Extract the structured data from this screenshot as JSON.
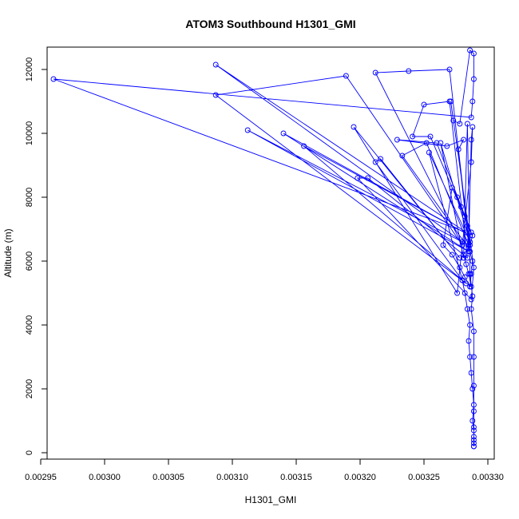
{
  "chart_data": {
    "type": "line",
    "title": "ATOM3 Southbound H1301_GMI",
    "xlabel": "H1301_GMI",
    "ylabel": "Altitude (m)",
    "xlim": [
      0.002955,
      0.003305
    ],
    "ylim": [
      -200,
      12700
    ],
    "x_ticks": [
      0.00295,
      0.003,
      0.00305,
      0.0031,
      0.00315,
      0.0032,
      0.00325,
      0.0033
    ],
    "x_tick_labels": [
      "0.00295",
      "0.00300",
      "0.00305",
      "0.00310",
      "0.00315",
      "0.00320",
      "0.00325",
      "0.00330"
    ],
    "y_ticks": [
      0,
      2000,
      4000,
      6000,
      8000,
      10000,
      12000
    ],
    "y_tick_labels": [
      "0",
      "2000",
      "4000",
      "6000",
      "8000",
      "10000",
      "12000"
    ],
    "grid": false,
    "series": [
      {
        "name": "H1301_GMI",
        "color": "#0000ff",
        "marker": "open-circle",
        "x": [
          0.003289,
          0.003289,
          0.003289,
          0.003288,
          0.003289,
          0.003288,
          0.003287,
          0.003286,
          0.003285,
          0.003286,
          0.003284,
          0.003282,
          0.00328,
          0.003287,
          0.003285,
          0.003283,
          0.003281,
          0.003286,
          0.003288,
          0.003284,
          0.003282,
          0.003279,
          0.003276,
          0.003272,
          0.003265,
          0.003272,
          0.003278,
          0.003282,
          0.003286,
          0.003287,
          0.003288,
          0.003285,
          0.003233,
          0.003252,
          0.003284,
          0.003286,
          0.003277,
          0.003281,
          0.003268,
          0.003229,
          0.00326,
          0.003287,
          0.003255,
          0.003241,
          0.00325,
          0.00327,
          0.003284,
          0.003206,
          0.003198,
          0.003287,
          0.003289,
          0.003271,
          0.003273,
          0.003278,
          0.003286,
          0.003289,
          0.003289,
          0.003288,
          0.003287,
          0.00296,
          0.003283,
          0.003087,
          0.00328,
          0.003112,
          0.003285,
          0.00314,
          0.003286,
          0.003156,
          0.003283,
          0.003087,
          0.003189,
          0.00328,
          0.003212,
          0.003238,
          0.00327,
          0.003285,
          0.003287,
          0.003288,
          0.003287,
          0.003276,
          0.003195,
          0.003278,
          0.003216,
          0.003212,
          0.00328,
          0.003254,
          0.003286,
          0.003263,
          0.003281,
          0.003284,
          0.003286,
          0.003288,
          0.003287,
          0.003289,
          0.003289,
          0.003289,
          0.003289,
          0.003289,
          0.003289,
          0.003289,
          0.003289
        ],
        "y": [
          200,
          400,
          700,
          1000,
          1500,
          2000,
          2500,
          3000,
          3500,
          4000,
          4500,
          5000,
          5400,
          5200,
          5600,
          5900,
          6200,
          6500,
          6800,
          7100,
          7400,
          7700,
          8000,
          8300,
          6500,
          6200,
          5800,
          5500,
          5200,
          5600,
          6000,
          6400,
          9300,
          9700,
          6600,
          6300,
          9500,
          9800,
          9600,
          9800,
          9700,
          6900,
          9900,
          9900,
          10900,
          11000,
          6100,
          8600,
          8600,
          4800,
          5800,
          11000,
          10400,
          10300,
          12600,
          12500,
          11700,
          11000,
          10500,
          11700,
          6900,
          12150,
          6600,
          10100,
          6300,
          10000,
          6800,
          9600,
          5300,
          11200,
          11800,
          6500,
          11900,
          11950,
          12000,
          6500,
          9800,
          10200,
          9100,
          5000,
          10200,
          6100,
          9200,
          9100,
          5400,
          9400,
          6600,
          9700,
          6100,
          10300,
          5600,
          4900,
          4500,
          3800,
          3000,
          2100,
          1300,
          800,
          500,
          300,
          200
        ]
      }
    ]
  }
}
